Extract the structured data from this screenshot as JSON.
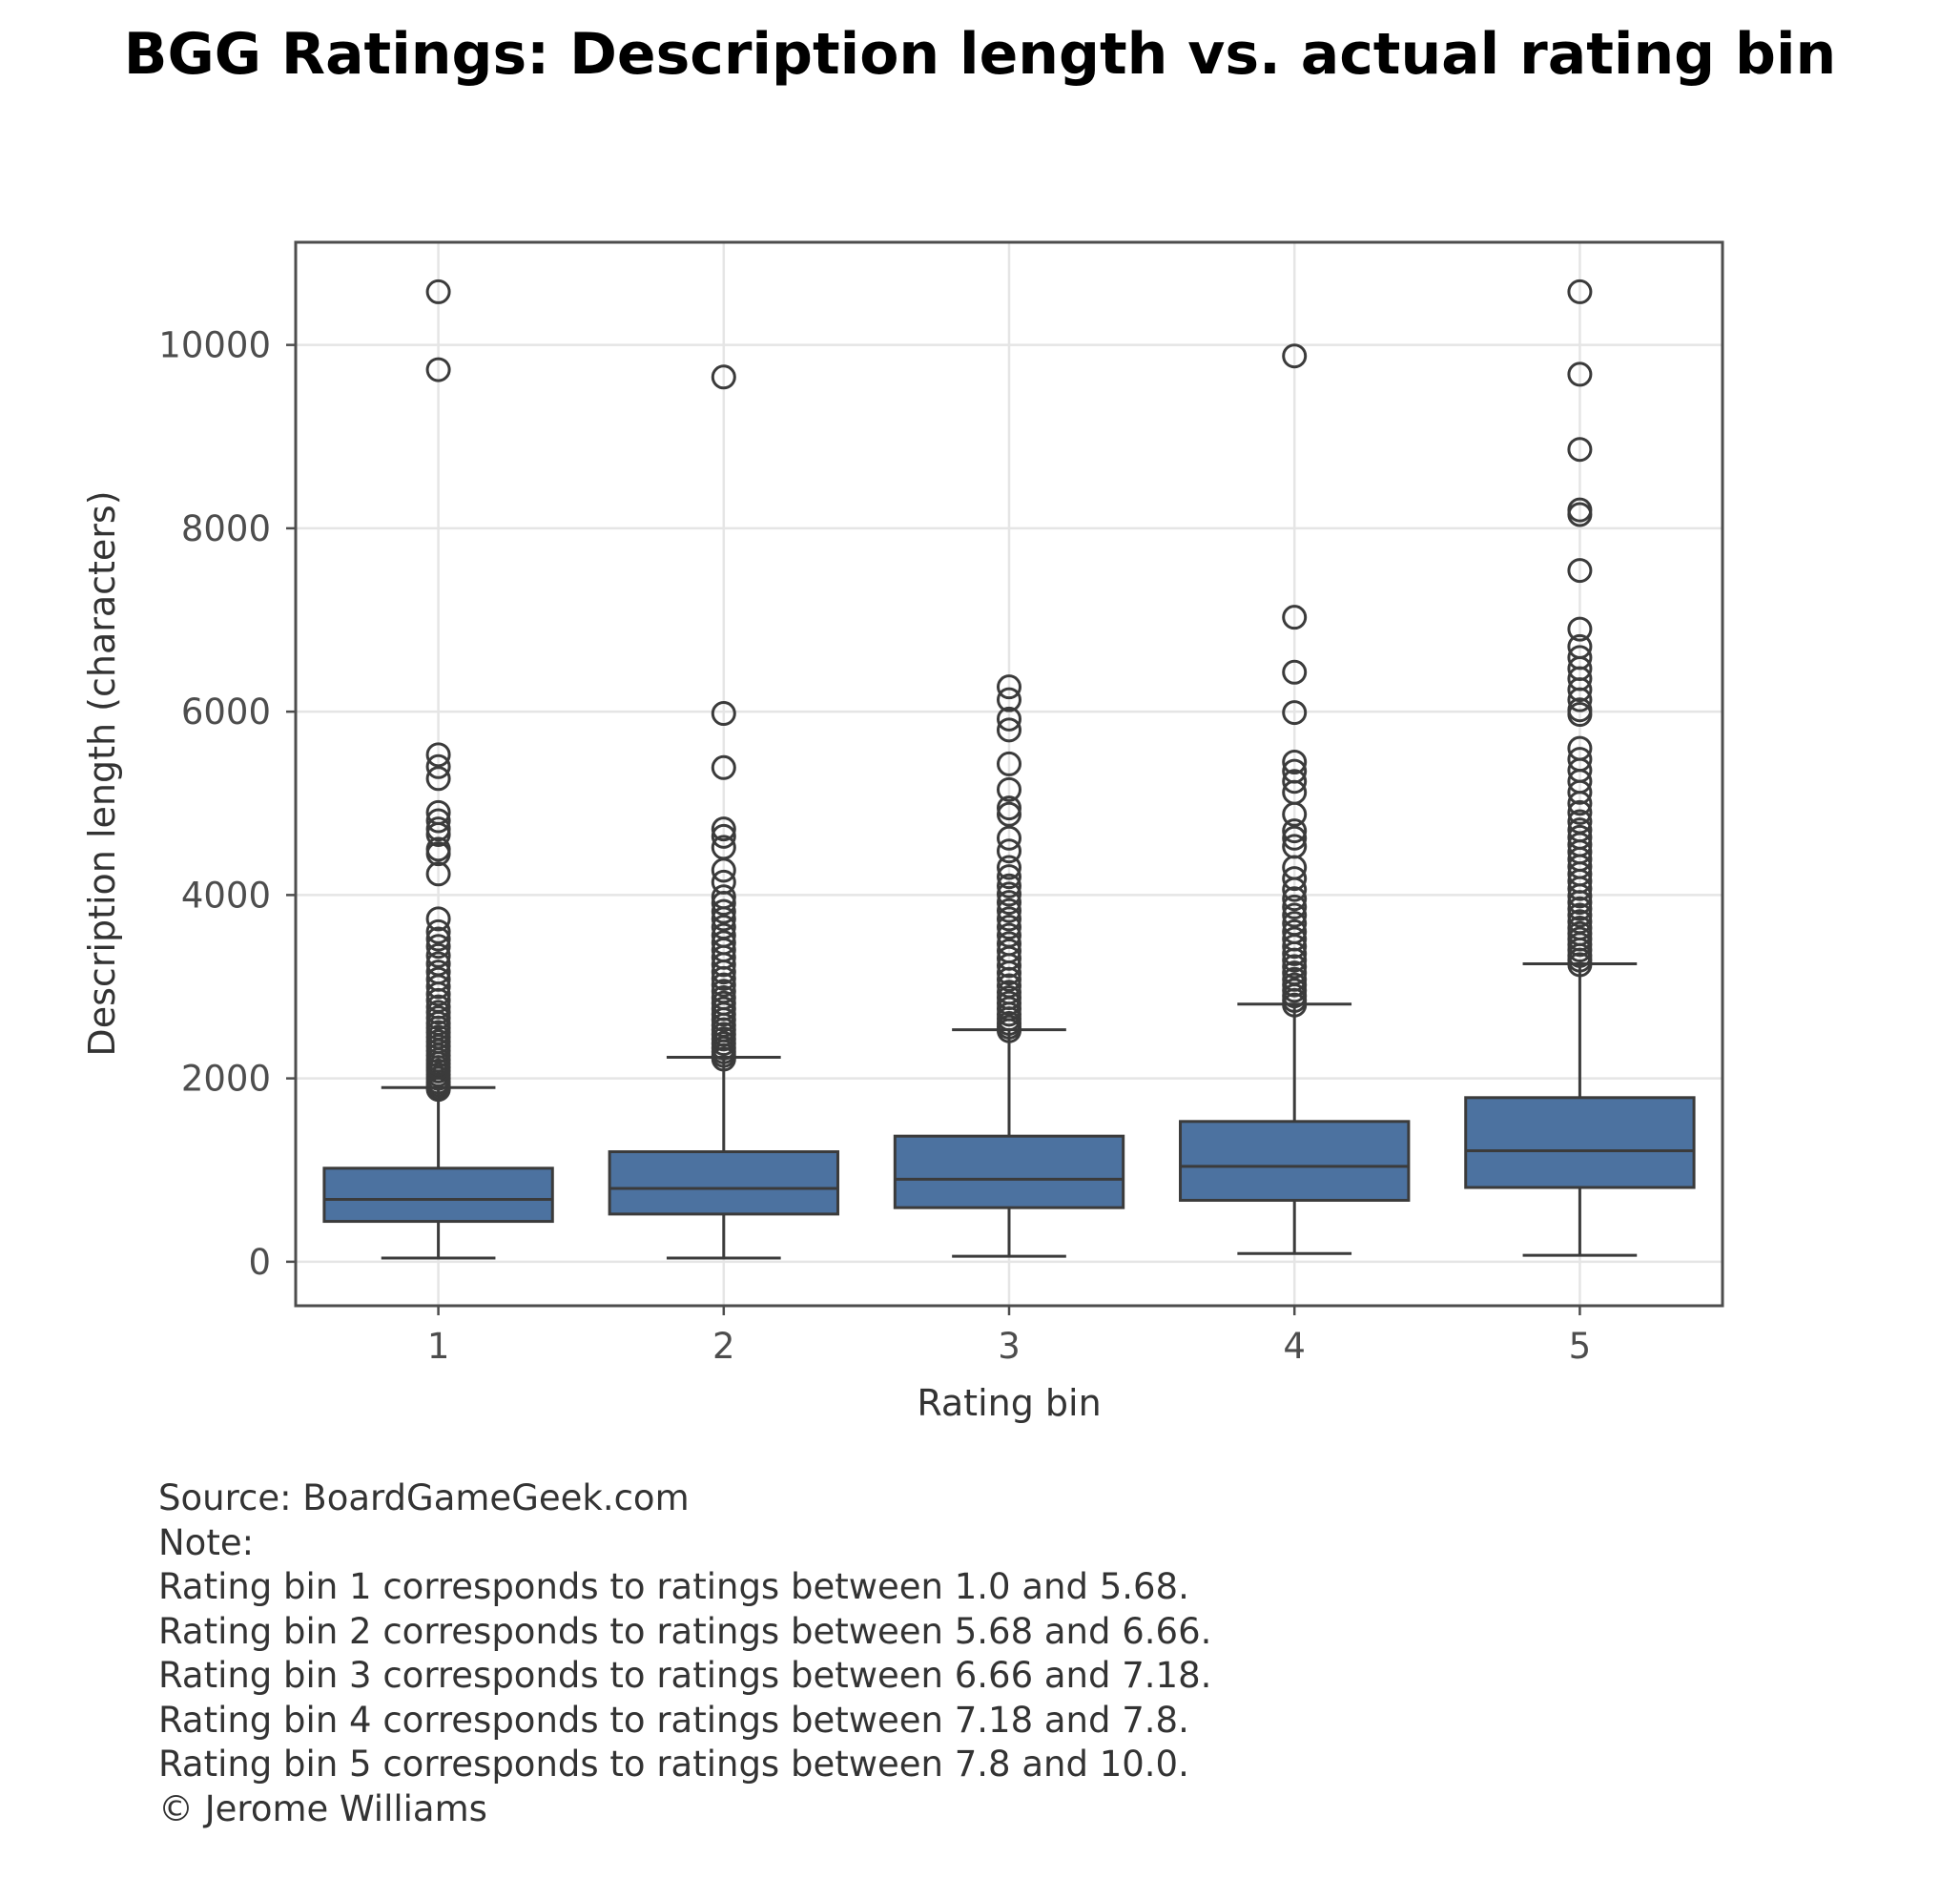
{
  "chart_data": {
    "type": "box",
    "title": "BGG Ratings: Description length vs. actual rating bin",
    "xlabel": "Rating bin",
    "ylabel": "Description length (characters)",
    "categories": [
      "1",
      "2",
      "3",
      "4",
      "5"
    ],
    "yticks": [
      0,
      2000,
      4000,
      6000,
      8000,
      10000
    ],
    "ytick_labels": [
      "0",
      "2000",
      "4000",
      "6000",
      "8000",
      "10000"
    ],
    "ylim": [
      -480,
      11120
    ],
    "grid": true,
    "legend": "none",
    "colors": {
      "box": "#4c72a0",
      "line": "#3b3b3b",
      "grid": "#e5e5e5",
      "axis": "#4d4d4d"
    },
    "boxes": [
      {
        "category": "1",
        "whisker_low": 40,
        "q1": 440,
        "median": 680,
        "q3": 1020,
        "whisker_high": 1900,
        "outliers": [
          1880,
          1900,
          1930,
          1960,
          2000,
          2040,
          2080,
          2120,
          2160,
          2200,
          2250,
          2300,
          2350,
          2400,
          2450,
          2500,
          2550,
          2600,
          2660,
          2720,
          2780,
          2850,
          2920,
          3000,
          3080,
          3160,
          3250,
          3340,
          3440,
          3520,
          3600,
          3740,
          4230,
          4450,
          4500,
          4660,
          4720,
          4810,
          4900,
          5270,
          5400,
          5530,
          9730,
          10580
        ]
      },
      {
        "category": "2",
        "whisker_low": 40,
        "q1": 520,
        "median": 800,
        "q3": 1200,
        "whisker_high": 2230,
        "outliers": [
          2210,
          2250,
          2290,
          2330,
          2380,
          2430,
          2480,
          2530,
          2580,
          2640,
          2700,
          2760,
          2820,
          2880,
          2950,
          3020,
          3090,
          3160,
          3240,
          3320,
          3400,
          3480,
          3560,
          3650,
          3740,
          3820,
          3910,
          3980,
          4140,
          4270,
          4520,
          4640,
          4720,
          5390,
          5980,
          9650
        ]
      },
      {
        "category": "3",
        "whisker_low": 60,
        "q1": 590,
        "median": 900,
        "q3": 1370,
        "whisker_high": 2530,
        "outliers": [
          2520,
          2560,
          2600,
          2650,
          2700,
          2760,
          2820,
          2880,
          2940,
          3010,
          3080,
          3150,
          3230,
          3310,
          3390,
          3470,
          3560,
          3650,
          3740,
          3830,
          3920,
          4010,
          4100,
          4200,
          4300,
          4480,
          4620,
          4880,
          4950,
          5150,
          5430,
          5800,
          5920,
          6130,
          6270
        ]
      },
      {
        "category": "4",
        "whisker_low": 90,
        "q1": 670,
        "median": 1040,
        "q3": 1530,
        "whisker_high": 2810,
        "outliers": [
          2800,
          2850,
          2900,
          2960,
          3020,
          3080,
          3150,
          3220,
          3290,
          3360,
          3440,
          3520,
          3600,
          3690,
          3780,
          3870,
          3960,
          4060,
          4180,
          4300,
          4530,
          4620,
          4700,
          4880,
          5120,
          5240,
          5350,
          5450,
          5990,
          6430,
          7030,
          9880
        ]
      },
      {
        "category": "5",
        "whisker_low": 70,
        "q1": 810,
        "median": 1210,
        "q3": 1790,
        "whisker_high": 3250,
        "outliers": [
          3240,
          3290,
          3340,
          3400,
          3460,
          3520,
          3580,
          3640,
          3710,
          3780,
          3850,
          3920,
          3990,
          4070,
          4150,
          4230,
          4310,
          4390,
          4470,
          4550,
          4630,
          4710,
          4800,
          4900,
          5000,
          5120,
          5240,
          5360,
          5480,
          5600,
          5970,
          6020,
          6130,
          6240,
          6360,
          6470,
          6590,
          6710,
          6900,
          7540,
          8150,
          8200,
          8860,
          9680,
          10580
        ]
      }
    ]
  },
  "footnote": {
    "lines": [
      "Source: BoardGameGeek.com",
      "Note:",
      "Rating bin 1 corresponds to ratings between 1.0 and 5.68.",
      "Rating bin 2 corresponds to ratings between 5.68 and 6.66.",
      "Rating bin 3 corresponds to ratings between 6.66 and 7.18.",
      "Rating bin 4 corresponds to ratings between 7.18 and 7.8.",
      "Rating bin 5 corresponds to ratings between 7.8 and 10.0.",
      "© Jerome Williams"
    ]
  }
}
